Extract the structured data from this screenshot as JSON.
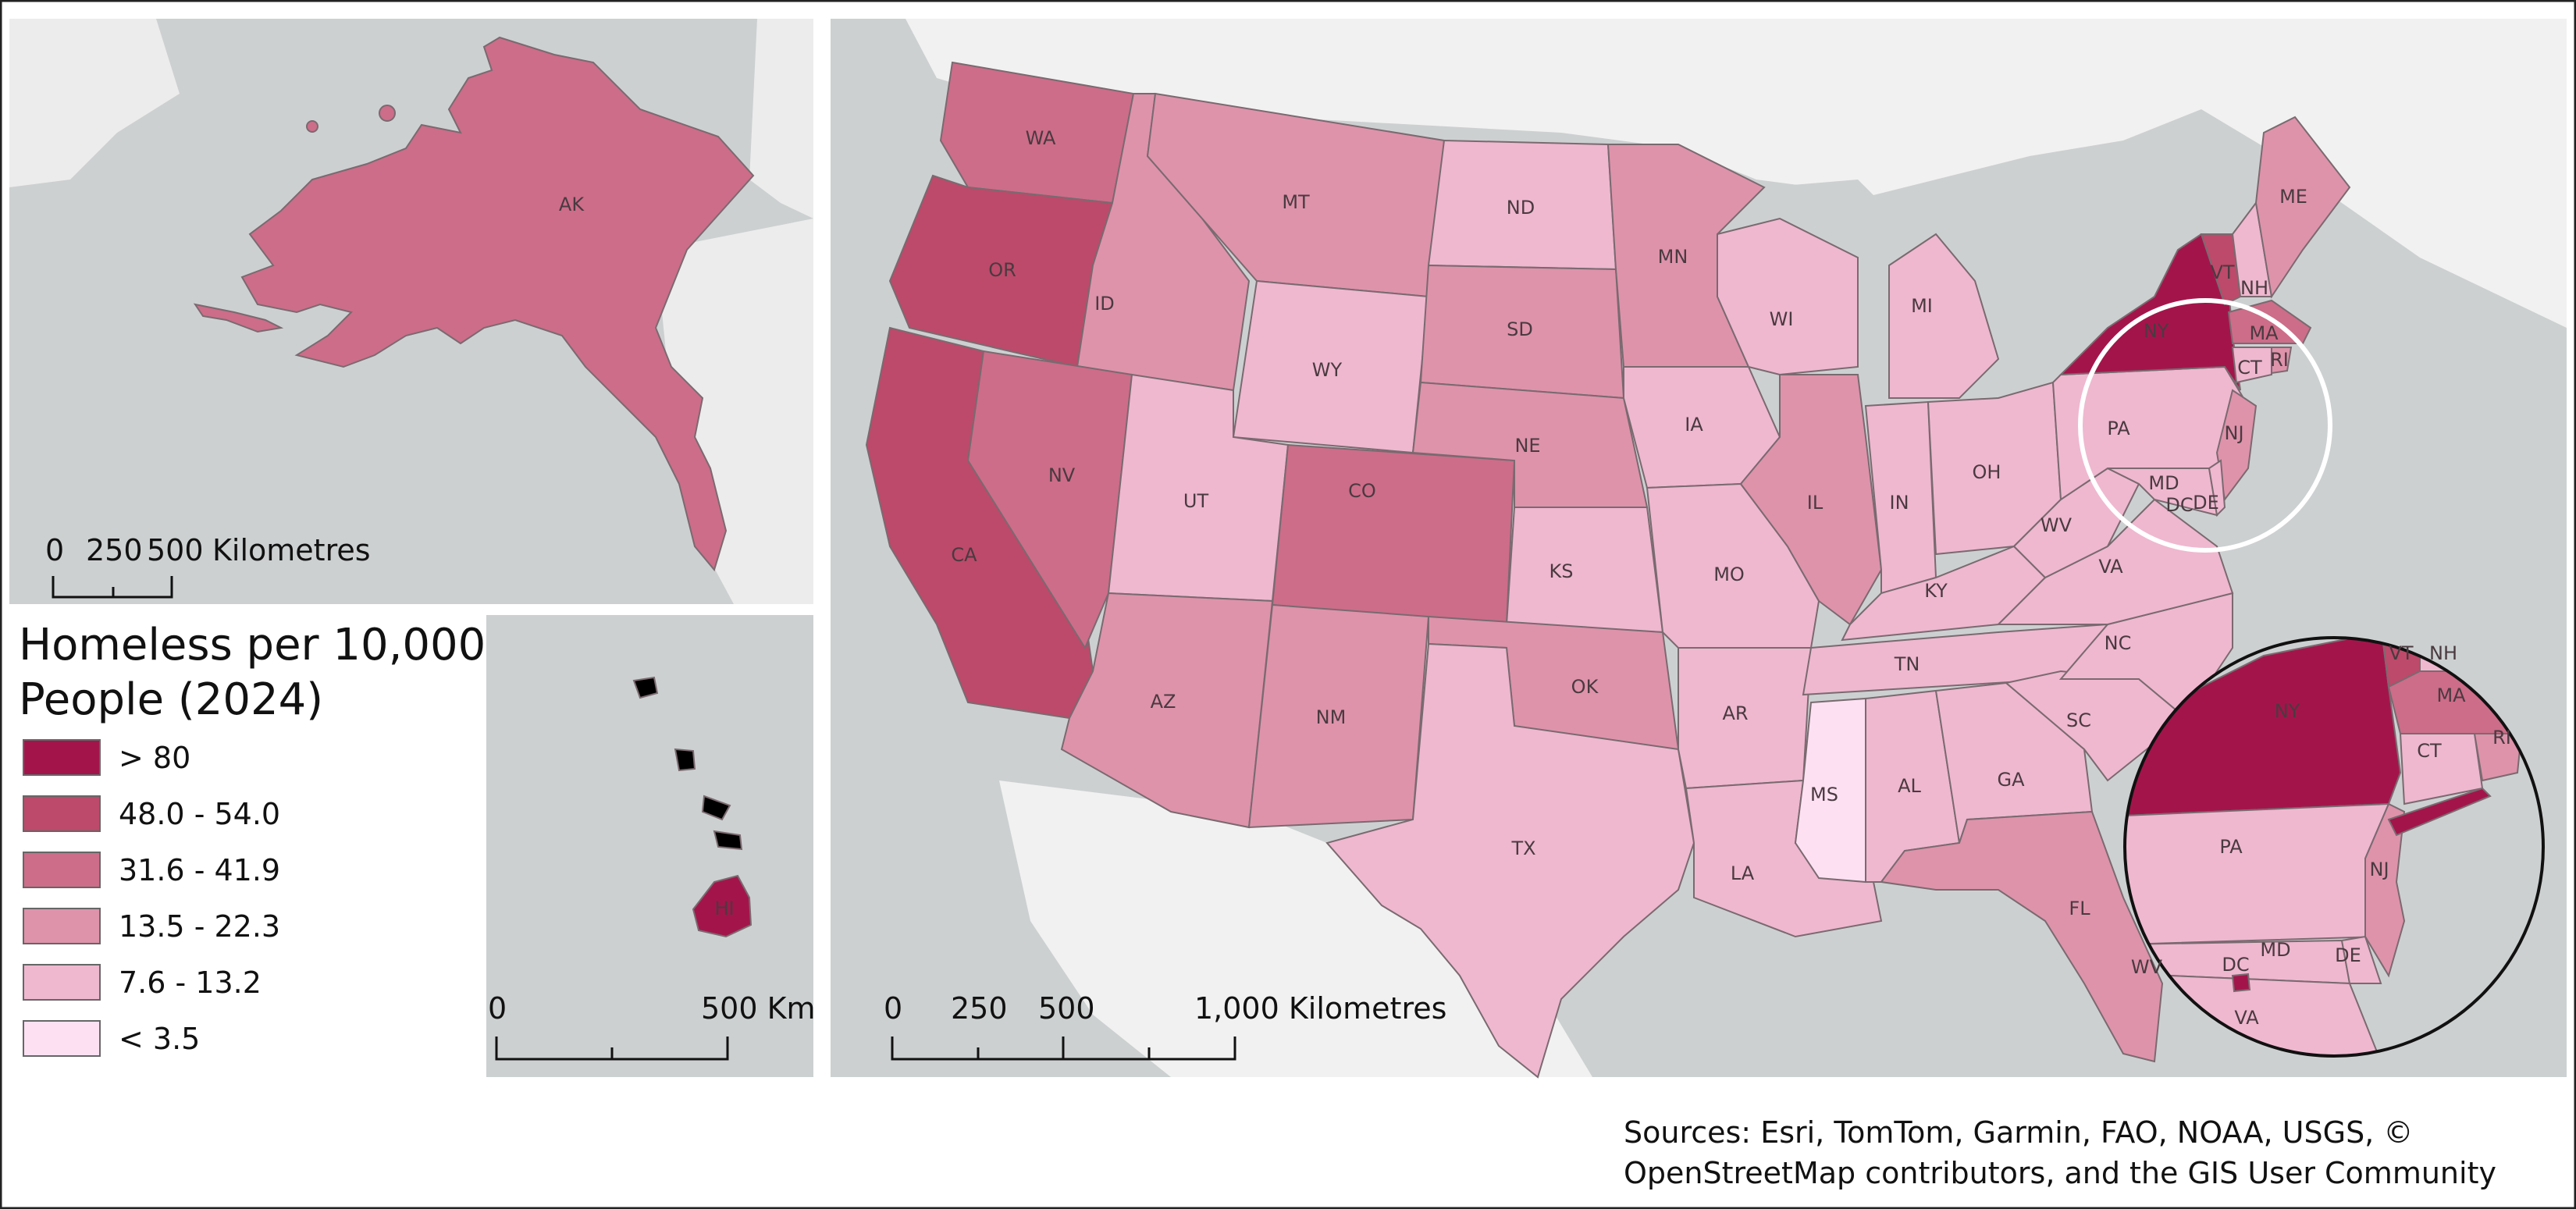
{
  "legend": {
    "title_line1": "Homeless per 10,000",
    "title_line2": "People (2024)",
    "classes": [
      {
        "label": "> 80",
        "color": "#a3154a"
      },
      {
        "label": "48.0 - 54.0",
        "color": "#bd4a6a"
      },
      {
        "label": "31.6 - 41.9",
        "color": "#cd6d89"
      },
      {
        "label": "13.5 - 22.3",
        "color": "#de93ab"
      },
      {
        "label": "7.6 - 13.2",
        "color": "#efb8cf"
      },
      {
        "label": "< 3.5",
        "color": "#fde1f3"
      }
    ]
  },
  "scales": {
    "alaska": {
      "ticks": [
        "0",
        "250",
        "500"
      ],
      "unit": "Kilometres"
    },
    "hawaii": {
      "ticks": [
        "0",
        "500 Km"
      ]
    },
    "main": {
      "ticks": [
        "0",
        "250",
        "500",
        "1,000 Kilometres"
      ]
    }
  },
  "sources_line1": "Sources: Esri, TomTom, Garmin, FAO, NOAA, USGS, ©",
  "sources_line2": "OpenStreetMap contributors, and the GIS User Community",
  "state_labels": {
    "AK": "AK",
    "HI": "HI",
    "WA": "WA",
    "OR": "OR",
    "CA": "CA",
    "ID": "ID",
    "NV": "NV",
    "MT": "MT",
    "WY": "WY",
    "UT": "UT",
    "AZ": "AZ",
    "CO": "CO",
    "NM": "NM",
    "ND": "ND",
    "SD": "SD",
    "NE": "NE",
    "KS": "KS",
    "OK": "OK",
    "TX": "TX",
    "MN": "MN",
    "IA": "IA",
    "MO": "MO",
    "AR": "AR",
    "LA": "LA",
    "WI": "WI",
    "IL": "IL",
    "MI": "MI",
    "IN": "IN",
    "OH": "OH",
    "KY": "KY",
    "TN": "TN",
    "MS": "MS",
    "AL": "AL",
    "GA": "GA",
    "FL": "FL",
    "SC": "SC",
    "NC": "NC",
    "VA": "VA",
    "WV": "WV",
    "PA": "PA",
    "NY": "NY",
    "VT": "VT",
    "NH": "NH",
    "ME": "ME",
    "MA": "MA",
    "CT": "CT",
    "RI": "RI",
    "NJ": "NJ",
    "MD": "MD",
    "DE": "DE",
    "DC": "DC"
  },
  "state_class": {
    "AK": "31.6 - 41.9",
    "HI": "> 80",
    "WA": "31.6 - 41.9",
    "OR": "48.0 - 54.0",
    "CA": "48.0 - 54.0",
    "ID": "13.5 - 22.3",
    "NV": "31.6 - 41.9",
    "MT": "13.5 - 22.3",
    "WY": "7.6 - 13.2",
    "UT": "7.6 - 13.2",
    "AZ": "13.5 - 22.3",
    "CO": "31.6 - 41.9",
    "NM": "13.5 - 22.3",
    "ND": "7.6 - 13.2",
    "SD": "13.5 - 22.3",
    "NE": "13.5 - 22.3",
    "KS": "7.6 - 13.2",
    "OK": "13.5 - 22.3",
    "TX": "7.6 - 13.2",
    "MN": "13.5 - 22.3",
    "IA": "7.6 - 13.2",
    "MO": "7.6 - 13.2",
    "AR": "7.6 - 13.2",
    "LA": "7.6 - 13.2",
    "WI": "7.6 - 13.2",
    "IL": "13.5 - 22.3",
    "MI": "7.6 - 13.2",
    "IN": "7.6 - 13.2",
    "OH": "7.6 - 13.2",
    "KY": "7.6 - 13.2",
    "TN": "7.6 - 13.2",
    "MS": "< 3.5",
    "AL": "7.6 - 13.2",
    "GA": "7.6 - 13.2",
    "FL": "13.5 - 22.3",
    "SC": "7.6 - 13.2",
    "NC": "7.6 - 13.2",
    "VA": "7.6 - 13.2",
    "WV": "7.6 - 13.2",
    "PA": "7.6 - 13.2",
    "NY": "> 80",
    "VT": "48.0 - 54.0",
    "NH": "7.6 - 13.2",
    "ME": "13.5 - 22.3",
    "MA": "31.6 - 41.9",
    "CT": "7.6 - 13.2",
    "RI": "13.5 - 22.3",
    "NJ": "13.5 - 22.3",
    "MD": "7.6 - 13.2",
    "DE": "7.6 - 13.2",
    "DC": "> 80"
  },
  "colors": {
    "land_background": "#f1f1f1",
    "water_background": "#ccd0d1",
    "state_border": "#7a6a70"
  }
}
